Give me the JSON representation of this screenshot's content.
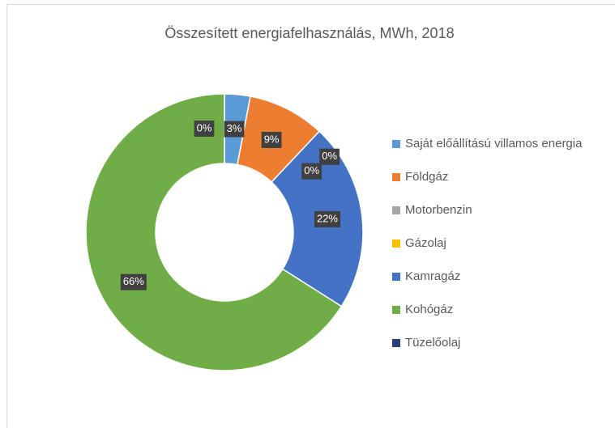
{
  "chart_data": {
    "type": "donut",
    "title": "Összesített energiafelhasználás, MWh, 2018",
    "categories": [
      "Saját előállítású villamos energia",
      "Földgáz",
      "Motorbenzin",
      "Gázolaj",
      "Kamragáz",
      "Kohógáz",
      "Tüzelőolaj"
    ],
    "values": [
      3,
      9,
      0,
      0,
      22,
      66,
      0
    ],
    "value_labels": [
      "3%",
      "9%",
      "0%",
      "0%",
      "22%",
      "66%",
      "0%"
    ],
    "colors": [
      "#5b9bd5",
      "#ed7d31",
      "#a5a5a5",
      "#ffc000",
      "#4472c4",
      "#70ad47",
      "#264478"
    ],
    "legend": "right"
  }
}
